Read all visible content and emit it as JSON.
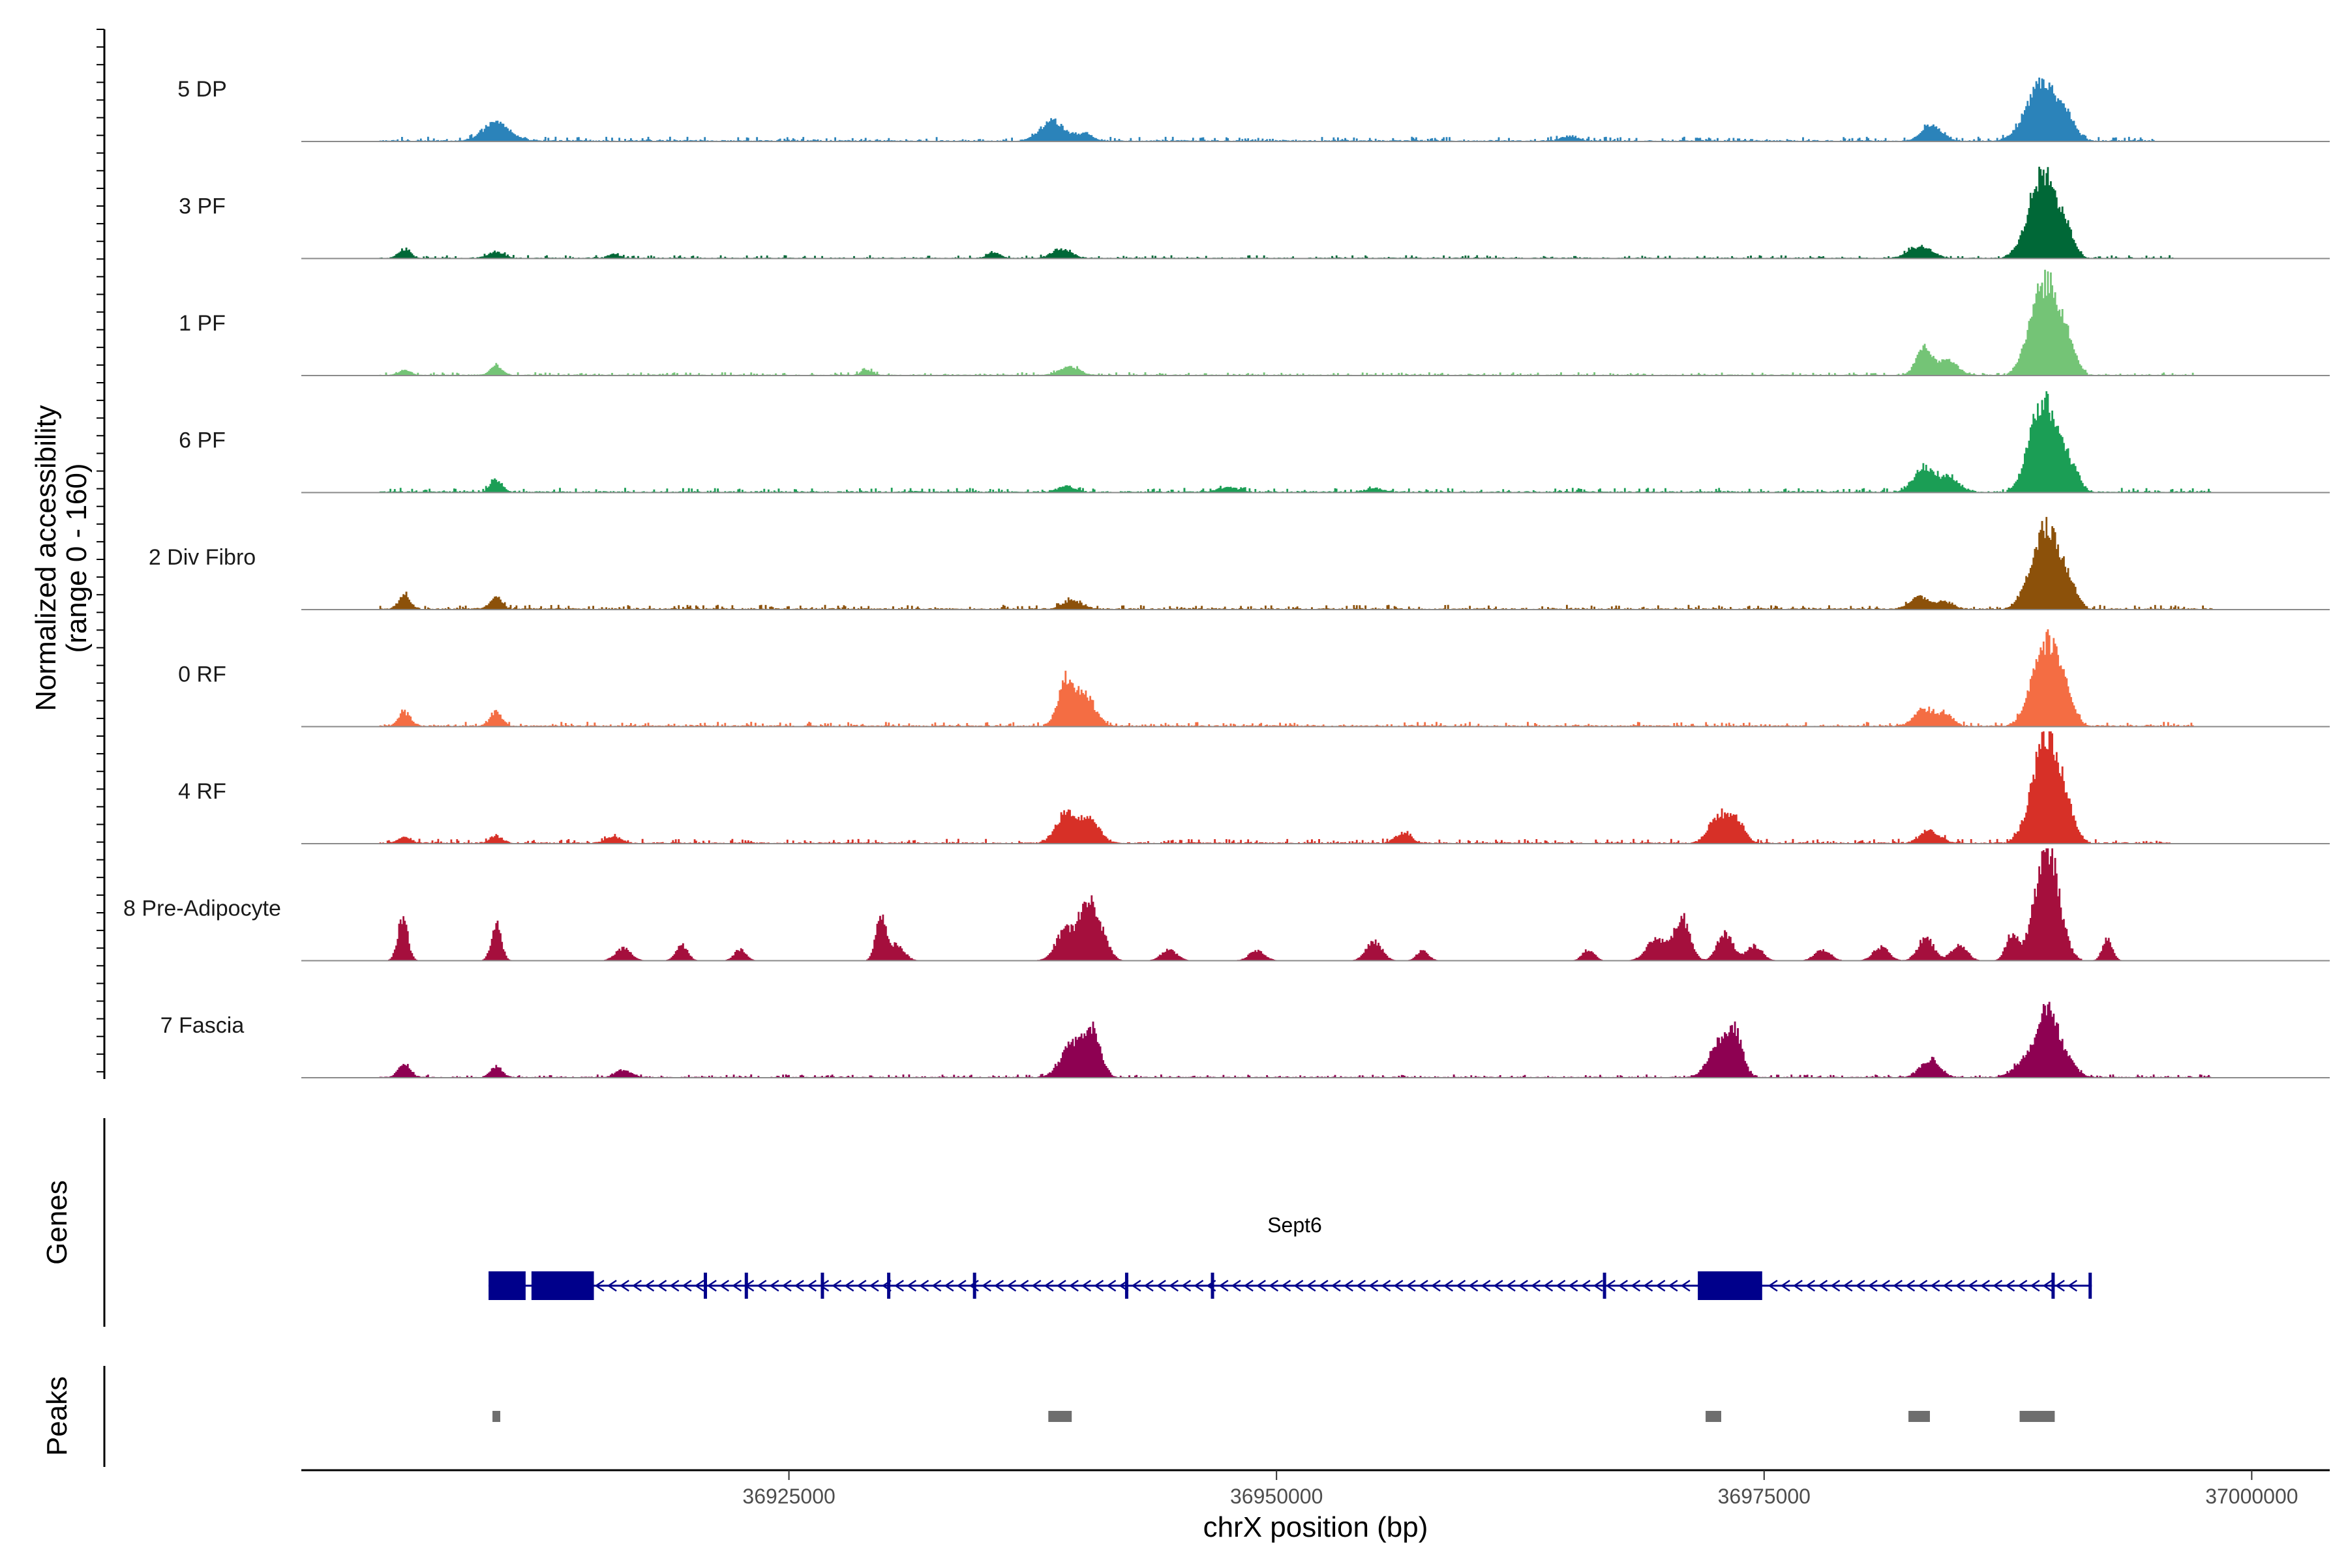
{
  "chart_data": {
    "type": "area",
    "title": "",
    "ylabel": "Normalized accessibility\n(range 0 - 160)",
    "ylabel_lines": [
      "Normalized accessibility",
      "(range 0 - 160)"
    ],
    "y_range": [
      0,
      160
    ],
    "xlabel": "chrX position (bp)",
    "x_range": [
      36900000,
      37004000
    ],
    "x_ticks": [
      36925000,
      36950000,
      36975000,
      37000000
    ],
    "x_tick_labels": [
      "36925000",
      "36950000",
      "36975000",
      "37000000"
    ],
    "series": [
      {
        "name": "5 DP",
        "color": "#2b83ba",
        "base": 3,
        "dense": [
          [
            36904000,
            36995000
          ]
        ],
        "amp": 1.0,
        "peaks": [
          [
            36910000,
            700,
            28
          ],
          [
            36938500,
            600,
            32
          ],
          [
            36940200,
            400,
            12
          ],
          [
            36965000,
            400,
            8
          ],
          [
            36983600,
            500,
            26
          ],
          [
            36989300,
            800,
            100
          ],
          [
            36990600,
            400,
            20
          ]
        ]
      },
      {
        "name": "3 PF",
        "color": "#006837",
        "base": 2,
        "dense": [
          [
            36904000,
            36996000
          ]
        ],
        "amp": 1.0,
        "peaks": [
          [
            36905300,
            300,
            14
          ],
          [
            36910000,
            400,
            10
          ],
          [
            36916000,
            300,
            6
          ],
          [
            36939000,
            500,
            14
          ],
          [
            36935500,
            300,
            10
          ],
          [
            36983000,
            600,
            18
          ],
          [
            36989300,
            700,
            138
          ],
          [
            36990500,
            400,
            30
          ]
        ]
      },
      {
        "name": "1 PF",
        "color": "#74c476",
        "base": 2,
        "dense": [
          [
            36904000,
            36997000
          ]
        ],
        "amp": 1.0,
        "peaks": [
          [
            36905300,
            300,
            8
          ],
          [
            36910000,
            300,
            16
          ],
          [
            36929000,
            300,
            8
          ],
          [
            36939400,
            500,
            14
          ],
          [
            36983200,
            400,
            44
          ],
          [
            36984400,
            500,
            24
          ],
          [
            36988600,
            400,
            20
          ],
          [
            36989500,
            700,
            152
          ],
          [
            36990600,
            400,
            30
          ]
        ]
      },
      {
        "name": "6 PF",
        "color": "#1b9e55",
        "base": 3,
        "dense": [
          [
            36904000,
            36998000
          ]
        ],
        "amp": 1.0,
        "peaks": [
          [
            36910000,
            300,
            20
          ],
          [
            36939200,
            400,
            10
          ],
          [
            36947500,
            500,
            8
          ],
          [
            36955000,
            400,
            6
          ],
          [
            36983200,
            500,
            40
          ],
          [
            36984500,
            500,
            24
          ],
          [
            36988800,
            500,
            30
          ],
          [
            36989500,
            700,
            135
          ],
          [
            36990800,
            400,
            26
          ]
        ]
      },
      {
        "name": "2 Div Fibro",
        "color": "#8c510a",
        "base": 3,
        "dense": [
          [
            36904000,
            36998000
          ]
        ],
        "amp": 1.0,
        "peaks": [
          [
            36905300,
            300,
            22
          ],
          [
            36910000,
            300,
            18
          ],
          [
            36939500,
            500,
            14
          ],
          [
            36983000,
            500,
            20
          ],
          [
            36984300,
            400,
            12
          ],
          [
            36988500,
            400,
            10
          ],
          [
            36989500,
            700,
            132
          ],
          [
            36990700,
            400,
            22
          ]
        ]
      },
      {
        "name": "0 RF",
        "color": "#f46d43",
        "base": 3,
        "dense": [
          [
            36904000,
            36997000
          ]
        ],
        "amp": 1.0,
        "peaks": [
          [
            36905300,
            300,
            22
          ],
          [
            36910000,
            300,
            22
          ],
          [
            36939200,
            400,
            70
          ],
          [
            36940200,
            500,
            50
          ],
          [
            36983200,
            500,
            26
          ],
          [
            36984300,
            400,
            18
          ],
          [
            36989500,
            700,
            140
          ],
          [
            36990500,
            400,
            24
          ]
        ]
      },
      {
        "name": "4 RF",
        "color": "#d73027",
        "base": 3,
        "dense": [
          [
            36904000,
            36996000
          ]
        ],
        "amp": 1.0,
        "peaks": [
          [
            36905300,
            300,
            10
          ],
          [
            36910000,
            300,
            12
          ],
          [
            36916000,
            400,
            10
          ],
          [
            36939200,
            500,
            46
          ],
          [
            36940400,
            500,
            40
          ],
          [
            36956500,
            400,
            16
          ],
          [
            36972700,
            500,
            42
          ],
          [
            36973600,
            400,
            34
          ],
          [
            36983500,
            500,
            20
          ],
          [
            36989500,
            700,
            180
          ],
          [
            36990600,
            400,
            22
          ]
        ]
      },
      {
        "name": "8 Pre-Adipocyte",
        "color": "#a50f3d",
        "base": 0,
        "dense": [],
        "amp": 1.0,
        "peaks": [
          [
            36905200,
            250,
            72
          ],
          [
            36910000,
            250,
            60
          ],
          [
            36916500,
            400,
            20
          ],
          [
            36919500,
            300,
            26
          ],
          [
            36922500,
            300,
            18
          ],
          [
            36929700,
            250,
            72
          ],
          [
            36930500,
            400,
            26
          ],
          [
            36939200,
            500,
            50
          ],
          [
            36940300,
            400,
            90
          ],
          [
            36941000,
            400,
            40
          ],
          [
            36944500,
            400,
            18
          ],
          [
            36949000,
            400,
            16
          ],
          [
            36955000,
            400,
            32
          ],
          [
            36957500,
            300,
            16
          ],
          [
            36966000,
            300,
            18
          ],
          [
            36969500,
            500,
            36
          ],
          [
            36970800,
            400,
            70
          ],
          [
            36973000,
            400,
            44
          ],
          [
            36974500,
            400,
            24
          ],
          [
            36978000,
            400,
            18
          ],
          [
            36981000,
            400,
            22
          ],
          [
            36983300,
            400,
            38
          ],
          [
            36985000,
            400,
            26
          ],
          [
            36987700,
            300,
            44
          ],
          [
            36989500,
            600,
            190
          ],
          [
            36992600,
            250,
            36
          ]
        ]
      },
      {
        "name": "7 Fascia",
        "color": "#8e0152",
        "base": 2,
        "dense": [
          [
            36904000,
            36998000
          ]
        ],
        "amp": 1.0,
        "peaks": [
          [
            36905300,
            300,
            22
          ],
          [
            36910000,
            300,
            18
          ],
          [
            36916500,
            400,
            12
          ],
          [
            36939600,
            600,
            56
          ],
          [
            36940600,
            400,
            68
          ],
          [
            36972600,
            500,
            50
          ],
          [
            36973500,
            400,
            70
          ],
          [
            36983500,
            500,
            28
          ],
          [
            36988500,
            600,
            30
          ],
          [
            36989600,
            500,
            110
          ],
          [
            36990700,
            400,
            20
          ]
        ]
      }
    ],
    "gene": {
      "name": "Sept6",
      "color": "#00008b",
      "strand": "-",
      "start": 36909600,
      "end": 36991800,
      "exons": [
        [
          36909600,
          36911500,
          "thick"
        ],
        [
          36911800,
          36915000,
          "thick"
        ],
        [
          36971600,
          36974900,
          "thick"
        ],
        [
          36920700,
          36920800,
          "thin"
        ],
        [
          36922800,
          36922900,
          "thin"
        ],
        [
          36926700,
          36926800,
          "thin"
        ],
        [
          36930100,
          36930200,
          "thin"
        ],
        [
          36934500,
          36934600,
          "thin"
        ],
        [
          36942300,
          36942400,
          "thin"
        ],
        [
          36946700,
          36946800,
          "thin"
        ],
        [
          36966800,
          36966900,
          "thin"
        ],
        [
          36989800,
          36989900,
          "thin"
        ],
        [
          36991700,
          36991800,
          "thin"
        ]
      ]
    },
    "peaks_track": {
      "color": "#6e6e6e",
      "regions": [
        [
          36909800,
          36910200
        ],
        [
          36938300,
          36939500
        ],
        [
          36972000,
          36972800
        ],
        [
          36982400,
          36983500
        ],
        [
          36988100,
          36989900
        ]
      ]
    },
    "side_labels": {
      "genes": "Genes",
      "peaks": "Peaks"
    }
  }
}
